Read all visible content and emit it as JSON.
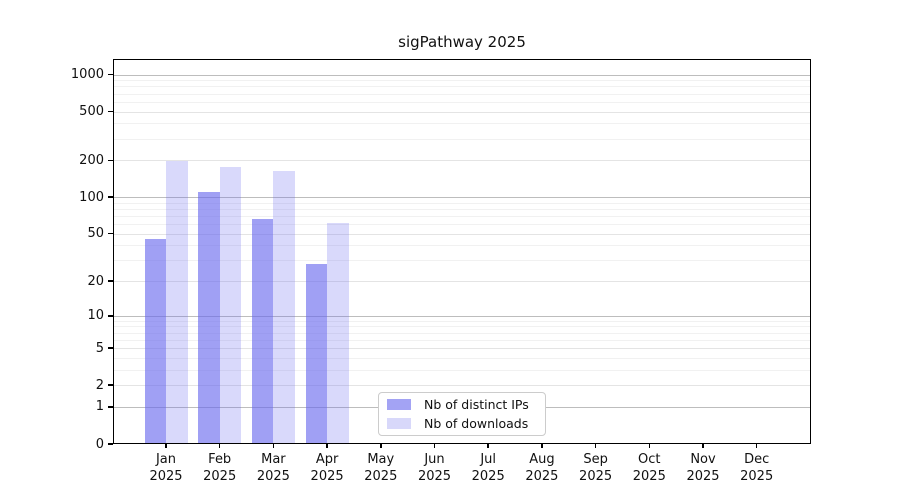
{
  "title": "sigPathway 2025",
  "chart_data": {
    "type": "bar",
    "title": "sigPathway 2025",
    "categories": [
      "Jan",
      "Feb",
      "Mar",
      "Apr",
      "May",
      "Jun",
      "Jul",
      "Aug",
      "Sep",
      "Oct",
      "Nov",
      "Dec"
    ],
    "category_year": "2025",
    "series": [
      {
        "name": "Nb of distinct IPs",
        "color": "rgba(102,102,238,0.62)",
        "legend_color": "#a3a3f4",
        "values": [
          45,
          111,
          66,
          28,
          0,
          0,
          0,
          0,
          0,
          0,
          0,
          0
        ]
      },
      {
        "name": "Nb of downloads",
        "color": "rgba(102,102,238,0.25)",
        "legend_color": "#d8d8fa",
        "values": [
          196,
          178,
          165,
          61,
          0,
          0,
          0,
          0,
          0,
          0,
          0,
          0
        ]
      }
    ],
    "yscale": "log1p",
    "y_ticks": [
      0,
      1,
      2,
      5,
      10,
      20,
      50,
      100,
      200,
      500,
      1000
    ],
    "y_minor_ticks": [
      3,
      4,
      6,
      7,
      8,
      9,
      30,
      40,
      60,
      70,
      80,
      90,
      300,
      400,
      600,
      700,
      800,
      900
    ],
    "ylim": [
      0,
      1320
    ],
    "grid": true,
    "legend_position": "inside lower-center-left"
  }
}
